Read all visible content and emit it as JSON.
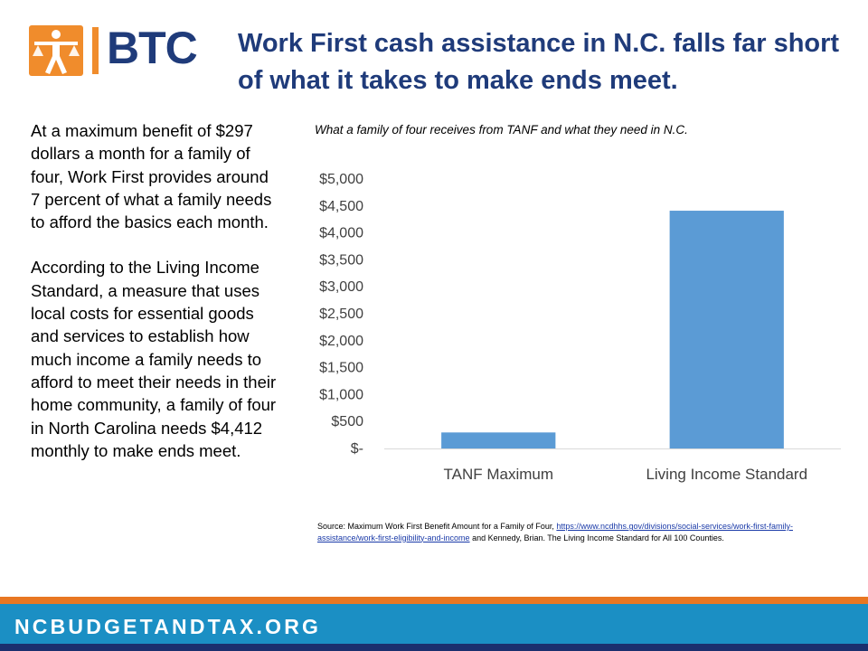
{
  "logo": {
    "text": "BTC"
  },
  "colors": {
    "logo_orange": "#f08c2c",
    "logo_text": "#1f3b7a",
    "title": "#1f3b7a",
    "bar": "#5b9bd5",
    "footer_orange": "#e87722",
    "footer_blue": "#1b8fc4",
    "footer_navy": "#1b2f6e"
  },
  "title": "Work First cash assistance in N.C. falls far short of what it takes to make ends meet.",
  "left_text": {
    "para1": "At a maximum  benefit of $297 dollars a month for a family of four, Work First provides around 7 percent of what a family needs to afford the basics each month.",
    "para2": "According to the Living Income Standard, a measure that uses local costs for essential goods and services to establish how much income a family needs to afford to meet their needs in their home community,  a family of four in North Carolina needs $4,412 monthly  to make ends meet."
  },
  "chart_data": {
    "type": "bar",
    "title": "What a family of four receives from TANF and what  they need in N.C.",
    "categories": [
      "TANF Maximum",
      "Living Income Standard"
    ],
    "values": [
      297,
      4412
    ],
    "ylim": [
      0,
      5000
    ],
    "yticks": [
      0,
      500,
      1000,
      1500,
      2000,
      2500,
      3000,
      3500,
      4000,
      4500,
      5000
    ],
    "ytick_labels": [
      "$-",
      "$500",
      "$1,000",
      "$1,500",
      "$2,000",
      "$2,500",
      "$3,000",
      "$3,500",
      "$4,000",
      "$4,500",
      "$5,000"
    ],
    "grid": false,
    "legend": "none",
    "xlabel": "",
    "ylabel": ""
  },
  "source": {
    "prefix": "Source: Maximum Work First Benefit Amount for a Family of Four, ",
    "link": "https://www.ncdhhs.gov/divisions/social-services/work-first-family-assistance/work-first-eligibility-and-income",
    "suffix": " and  Kennedy, Brian. The Living Income Standard for All 100 Counties."
  },
  "footer": {
    "text": "NCBUDGETANDTAX.ORG"
  }
}
